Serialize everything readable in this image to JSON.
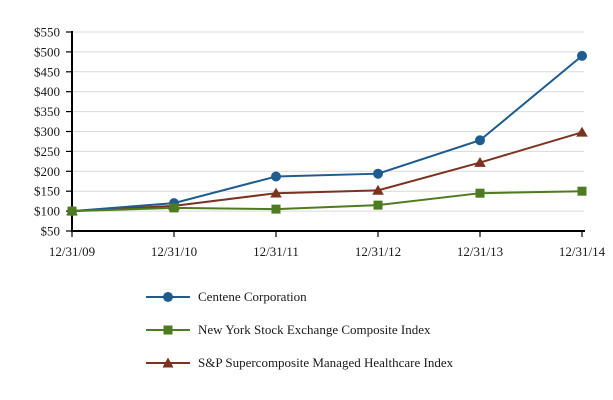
{
  "chart_data": {
    "type": "line",
    "title": "",
    "categories": [
      "12/31/09",
      "12/31/10",
      "12/31/11",
      "12/31/12",
      "12/31/13",
      "12/31/14"
    ],
    "series": [
      {
        "name": "Centene Corporation",
        "marker": "circle",
        "color": "#1E5C90",
        "values": [
          100,
          120,
          187,
          194,
          278,
          490
        ]
      },
      {
        "name": "New York Stock Exchange Composite Index",
        "marker": "square",
        "color": "#4E7B1F",
        "values": [
          100,
          108,
          105,
          115,
          145,
          150
        ]
      },
      {
        "name": "S&P Supercomposite Managed Healthcare Index",
        "marker": "triangle",
        "color": "#7A3321",
        "values": [
          100,
          113,
          145,
          152,
          222,
          298
        ]
      }
    ],
    "y_axis": {
      "min": 50,
      "max": 550,
      "step": 50,
      "prefix": "$",
      "tick_labels": [
        "$550",
        "$500",
        "$450",
        "$400",
        "$350",
        "$300",
        "$250",
        "$200",
        "$150",
        "$100",
        "$50"
      ]
    },
    "x_axis": {
      "labels": [
        "12/31/09",
        "12/31/10",
        "12/31/11",
        "12/31/12",
        "12/31/13",
        "12/31/14"
      ]
    },
    "legend_position": "bottom-left",
    "grid": true,
    "gridline_color": "#D9D9D9",
    "axis_color": "#000000",
    "text_color": "#1A1A1A",
    "background": "#FFFFFF",
    "draw_order": [
      2,
      0,
      1
    ]
  }
}
